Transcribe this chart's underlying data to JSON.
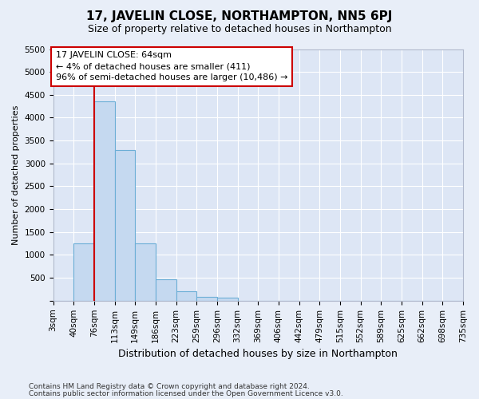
{
  "title": "17, JAVELIN CLOSE, NORTHAMPTON, NN5 6PJ",
  "subtitle": "Size of property relative to detached houses in Northampton",
  "xlabel": "Distribution of detached houses by size in Northampton",
  "ylabel": "Number of detached properties",
  "footer_line1": "Contains HM Land Registry data © Crown copyright and database right 2024.",
  "footer_line2": "Contains public sector information licensed under the Open Government Licence v3.0.",
  "bin_labels": [
    "3sqm",
    "40sqm",
    "76sqm",
    "113sqm",
    "149sqm",
    "186sqm",
    "223sqm",
    "259sqm",
    "296sqm",
    "332sqm",
    "369sqm",
    "406sqm",
    "442sqm",
    "479sqm",
    "515sqm",
    "552sqm",
    "589sqm",
    "625sqm",
    "662sqm",
    "698sqm",
    "735sqm"
  ],
  "bar_values": [
    0,
    1260,
    4350,
    3300,
    1260,
    475,
    200,
    90,
    75,
    0,
    0,
    0,
    0,
    0,
    0,
    0,
    0,
    0,
    0,
    0
  ],
  "bar_color": "#c5d9f0",
  "bar_edge_color": "#6baed6",
  "annotation_box_text": "17 JAVELIN CLOSE: 64sqm\n← 4% of detached houses are smaller (411)\n96% of semi-detached houses are larger (10,486) →",
  "annotation_box_color": "white",
  "annotation_box_edge_color": "#cc0000",
  "property_line_color": "#cc0000",
  "ylim": [
    0,
    5500
  ],
  "yticks": [
    0,
    500,
    1000,
    1500,
    2000,
    2500,
    3000,
    3500,
    4000,
    4500,
    5000,
    5500
  ],
  "background_color": "#e8eef8",
  "plot_background_color": "#dde6f5",
  "grid_color": "white",
  "title_fontsize": 11,
  "subtitle_fontsize": 9,
  "xlabel_fontsize": 9,
  "ylabel_fontsize": 8,
  "annotation_fontsize": 8,
  "tick_fontsize": 7.5,
  "footer_fontsize": 6.5
}
